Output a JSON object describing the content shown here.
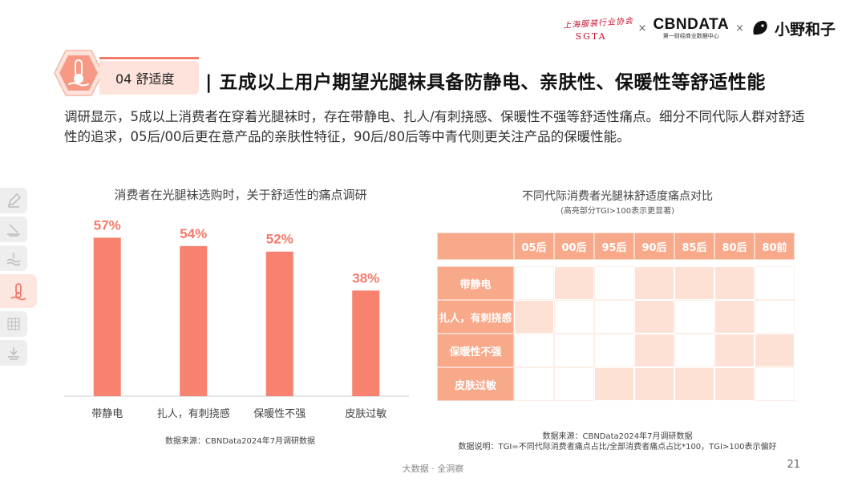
{
  "logos": {
    "sgta_seal_text": "上海服装行业协会",
    "sgta_abbr": "SGTA",
    "separator": "×",
    "cbn_name": "CBNDATA",
    "cbn_sub": "第一财经商业数据中心",
    "brand_name": "小野和子"
  },
  "section": {
    "tag": "04  舒适度",
    "headline": "| 五成以上用户期望光腿袜具备防静电、亲肤性、保暖性等舒适性能",
    "intro": "调研显示，5成以上消费者在穿着光腿袜时，存在带静电、扎人/有刺挠感、保暖性不强等舒适性痛点。细分不同代际人群对舒适性的追求，05后/00后更在意产品的亲肤性特征，90后/80后等中青代则更关注产品的保暖性能。"
  },
  "sidenav": [
    "pencil-icon",
    "stack-icon",
    "waves-icon",
    "thermometer-icon",
    "grid-icon",
    "download-icon"
  ],
  "chart_data": [
    {
      "type": "bar",
      "title": "消费者在光腿袜选购时，关于舒适性的痛点调研",
      "categories": [
        "带静电",
        "扎人，有刺挠感",
        "保暖性不强",
        "皮肤过敏"
      ],
      "values": [
        57,
        54,
        52,
        38
      ],
      "value_labels": [
        "57%",
        "54%",
        "52%",
        "38%"
      ],
      "ylim": [
        0,
        60
      ],
      "bar_color": "#f7826f",
      "label_color": "#f47a6a",
      "source": "数据来源：CBNData2024年7月调研数据"
    },
    {
      "type": "heatmap",
      "title": "不同代际消费者光腿袜舒适度痛点对比",
      "subtitle": "(高亮部分TGI>100表示更显著)",
      "columns": [
        "05后",
        "00后",
        "95后",
        "90后",
        "85后",
        "80后",
        "80前"
      ],
      "rows": [
        "带静电",
        "扎人，有刺挠感",
        "保暖性不强",
        "皮肤过敏"
      ],
      "highlight": [
        [
          0,
          1,
          0,
          1,
          1,
          1,
          0
        ],
        [
          1,
          0,
          0,
          1,
          0,
          1,
          0
        ],
        [
          0,
          0,
          0,
          1,
          0,
          1,
          1
        ],
        [
          0,
          0,
          1,
          1,
          1,
          1,
          0
        ]
      ],
      "source": "数据来源：CBNData2024年7月调研数据",
      "note": "数据说明：TGI=不同代际消费者痛点占比/全部消费者痛点占比*100，TGI>100表示偏好"
    }
  ],
  "footer": "大数据 · 全洞察",
  "page_number": "21"
}
